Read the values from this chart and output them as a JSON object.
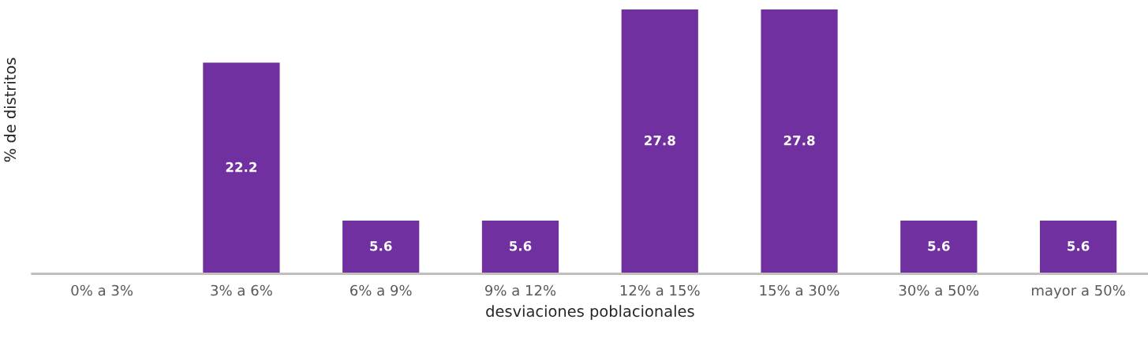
{
  "chart_data": {
    "type": "bar",
    "xlabel": "desviaciones poblacionales",
    "ylabel": "% de distritos",
    "categories": [
      "0% a 3%",
      "3% a 6%",
      "6% a 9%",
      "9% a 12%",
      "12% a 15%",
      "15% a 30%",
      "30% a 50%",
      "mayor a 50%"
    ],
    "values": [
      0,
      22.2,
      5.6,
      5.6,
      27.8,
      27.8,
      5.6,
      5.6
    ],
    "value_labels": [
      null,
      "22.2",
      "5.6",
      "5.6",
      "27.8",
      "27.8",
      "5.6",
      "5.6"
    ],
    "color": "#7030a0",
    "tick_labels": "x"
  }
}
